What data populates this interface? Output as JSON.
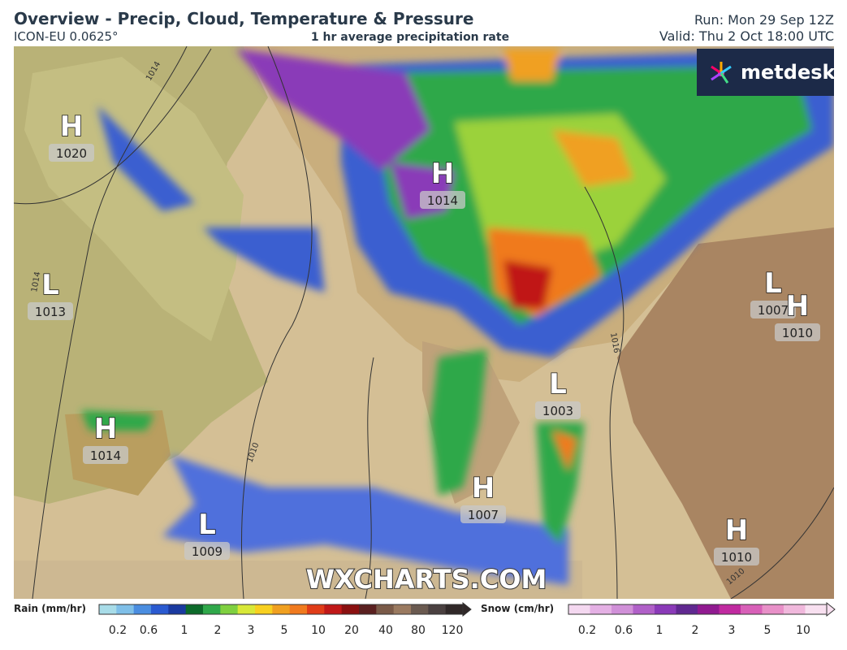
{
  "header": {
    "title": "Overview - Precip, Cloud, Temperature & Pressure",
    "model": "ICON-EU 0.0625°",
    "subtitle": "1 hr average precipitation rate",
    "run": "Run: Mon 29 Sep 12Z",
    "valid": "Valid: Thu 2 Oct 18:00 UTC"
  },
  "logo": "metdesk",
  "watermark": "WXCHARTS.COM",
  "pressure_centers": [
    {
      "symbol": "H",
      "value": 1020
    },
    {
      "symbol": "L",
      "value": 1013
    },
    {
      "symbol": "H",
      "value": 1014
    },
    {
      "symbol": "L",
      "value": 1009
    },
    {
      "symbol": "H",
      "value": 1014
    },
    {
      "symbol": "H",
      "value": 1007
    },
    {
      "symbol": "L",
      "value": 1003
    },
    {
      "symbol": "L",
      "value": 1007
    },
    {
      "symbol": "H",
      "value": 1010
    },
    {
      "symbol": "H",
      "value": 1010
    }
  ],
  "isobar_labels": [
    1014,
    1014,
    1010,
    1016,
    1010
  ],
  "legend": {
    "rain": {
      "title": "Rain (mm/hr)",
      "ticks": [
        0.2,
        0.6,
        1,
        2,
        3,
        5,
        10,
        20,
        40,
        80,
        120
      ]
    },
    "snow": {
      "title": "Snow (cm/hr)",
      "ticks": [
        0.2,
        0.6,
        1,
        2,
        3,
        5,
        10
      ]
    }
  }
}
